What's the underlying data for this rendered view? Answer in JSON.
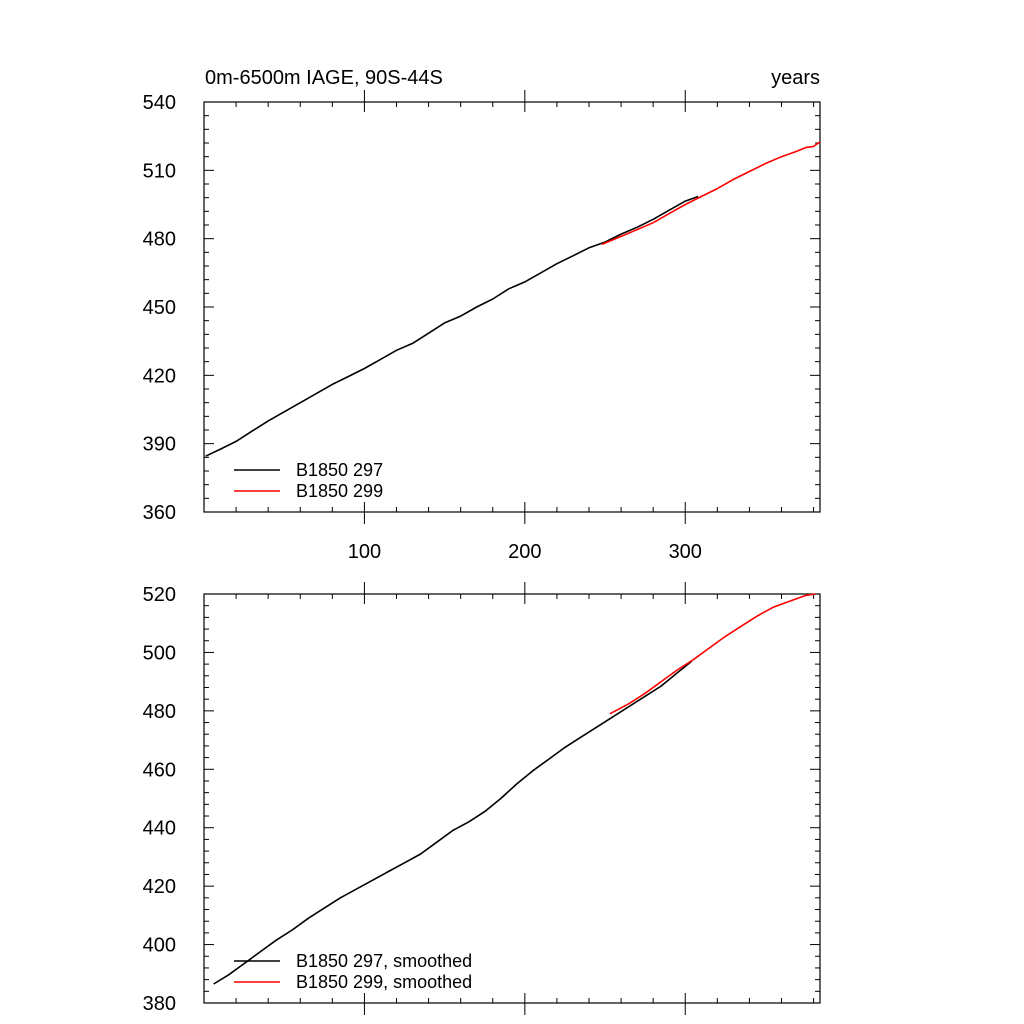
{
  "chart_data": [
    {
      "type": "line",
      "title_left": "0m-6500m IAGE, 90S-44S",
      "title_right": "years",
      "xlim": [
        0,
        384
      ],
      "ylim": [
        360,
        540
      ],
      "yticks": [
        360,
        390,
        420,
        450,
        480,
        510,
        540
      ],
      "xticks": [
        100,
        200,
        300
      ],
      "legend_position": "bottom-left",
      "series": [
        {
          "name": "B1850 297",
          "color": "#000000",
          "x": [
            1,
            10,
            20,
            30,
            40,
            50,
            60,
            70,
            80,
            90,
            100,
            110,
            120,
            130,
            140,
            150,
            160,
            170,
            180,
            190,
            195,
            200,
            210,
            220,
            230,
            240,
            250,
            260,
            270,
            280,
            290,
            300,
            308
          ],
          "y": [
            384.5,
            387.5,
            391,
            395.5,
            400,
            404,
            408,
            412,
            416,
            419.5,
            423,
            427,
            431,
            434,
            438.5,
            443,
            446,
            450,
            453.5,
            458,
            459.5,
            461,
            465,
            469,
            472.5,
            476,
            478.5,
            482,
            485,
            488.5,
            492.5,
            496.5,
            498.5
          ]
        },
        {
          "name": "B1850 299",
          "color": "#ff0000",
          "x": [
            248,
            260,
            270,
            280,
            290,
            300,
            310,
            320,
            330,
            340,
            350,
            360,
            370,
            375,
            380,
            384
          ],
          "y": [
            477.5,
            481,
            484,
            487,
            491,
            495,
            498.5,
            502,
            506,
            509.5,
            513,
            516,
            518.5,
            520,
            520.5,
            522.5
          ]
        }
      ]
    },
    {
      "type": "line",
      "xlim": [
        0,
        384
      ],
      "ylim": [
        380,
        520
      ],
      "yticks": [
        380,
        400,
        420,
        440,
        460,
        480,
        500,
        520
      ],
      "xticks": [
        100,
        200,
        300
      ],
      "legend_position": "bottom-left",
      "series": [
        {
          "name": "B1850 297, smoothed",
          "color": "#000000",
          "x": [
            6,
            15,
            25,
            35,
            45,
            55,
            65,
            75,
            85,
            95,
            105,
            115,
            125,
            135,
            145,
            155,
            165,
            175,
            185,
            195,
            205,
            215,
            225,
            235,
            245,
            255,
            265,
            275,
            285,
            295,
            304
          ],
          "y": [
            386.5,
            389.5,
            393.5,
            397.5,
            401.5,
            405,
            409,
            412.5,
            416,
            419,
            422,
            425,
            428,
            431,
            435,
            439,
            442,
            445.5,
            450,
            455,
            459.5,
            463.5,
            467.5,
            471,
            474.5,
            478,
            481.5,
            485,
            488.5,
            493,
            497
          ]
        },
        {
          "name": "B1850 299, smoothed",
          "color": "#ff0000",
          "x": [
            253,
            265,
            275,
            285,
            295,
            305,
            315,
            325,
            335,
            345,
            355,
            365,
            375,
            381
          ],
          "y": [
            479,
            482.5,
            486,
            490,
            494,
            497.5,
            501.5,
            505.5,
            509,
            512.5,
            515.5,
            517.5,
            519.5,
            520
          ]
        }
      ]
    }
  ]
}
